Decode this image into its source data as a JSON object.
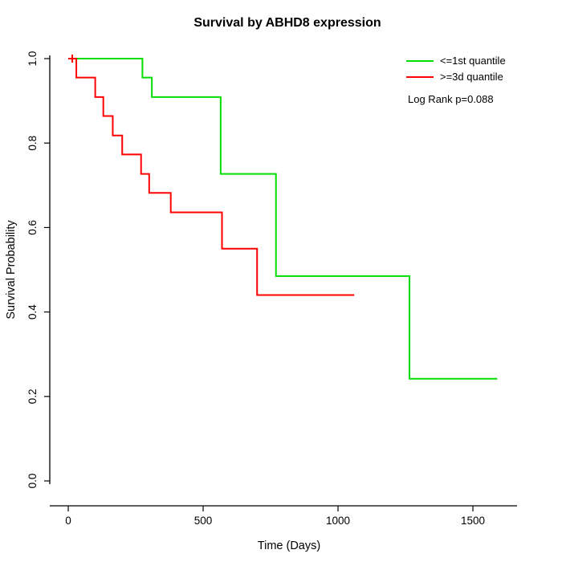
{
  "title": "Survival by ABHD8 expression",
  "x_axis": {
    "label": "Time (Days)",
    "tick_values": [
      0,
      500,
      1000,
      1500
    ],
    "tick_labels": [
      "0",
      "500",
      "1000",
      "1500"
    ]
  },
  "y_axis": {
    "label": "Survival Probability",
    "tick_values": [
      0.0,
      0.2,
      0.4,
      0.6,
      0.8,
      1.0
    ],
    "tick_labels": [
      "0.0",
      "0.2",
      "0.4",
      "0.6",
      "0.8",
      "1.0"
    ]
  },
  "legend": {
    "items": [
      {
        "label": "<=1st quantile",
        "color": "#00DD00"
      },
      {
        "label": ">=3d quantile",
        "color": "#FF0000"
      }
    ],
    "note": "Log Rank p=0.088"
  },
  "chart_data": {
    "type": "line",
    "subtype": "kaplan-meier-step",
    "title": "Survival by ABHD8 expression",
    "xlabel": "Time (Days)",
    "ylabel": "Survival Probability",
    "xlim": [
      0,
      1590
    ],
    "ylim": [
      0.0,
      1.0
    ],
    "grid": false,
    "legend_position": "top-right",
    "log_rank_p": 0.088,
    "series": [
      {
        "name": "<=1st quantile",
        "color": "#00DD00",
        "steps": [
          [
            0,
            1.0
          ],
          [
            275,
            0.955
          ],
          [
            310,
            0.909
          ],
          [
            565,
            0.727
          ],
          [
            770,
            0.485
          ],
          [
            1265,
            0.242
          ]
        ],
        "end_time": 1590
      },
      {
        "name": ">=3d quantile",
        "color": "#FF0000",
        "steps": [
          [
            0,
            1.0
          ],
          [
            30,
            0.955
          ],
          [
            100,
            0.909
          ],
          [
            130,
            0.864
          ],
          [
            165,
            0.818
          ],
          [
            200,
            0.773
          ],
          [
            270,
            0.727
          ],
          [
            300,
            0.682
          ],
          [
            380,
            0.636
          ],
          [
            570,
            0.55
          ],
          [
            700,
            0.44
          ]
        ],
        "end_time": 1060
      }
    ],
    "censor_ticks": [
      {
        "series": 0,
        "t": 15,
        "s": 1.0
      },
      {
        "series": 1,
        "t": 15,
        "s": 1.0
      }
    ]
  }
}
